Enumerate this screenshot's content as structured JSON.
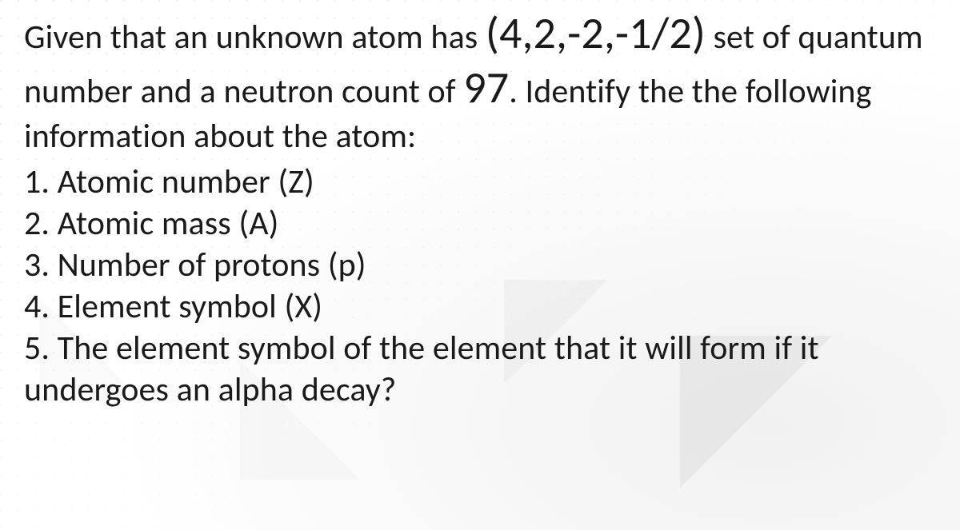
{
  "intro": {
    "s1": "Given that an unknown atom has ",
    "q": "(4,2,-2,-1/2)",
    "s2": " set of quantum number and a neutron count of ",
    "n": "97",
    "s3": ". Identify the the following information about the atom:"
  },
  "items": {
    "i1": "1. Atomic number (Z)",
    "i2": "2. Atomic mass (A)",
    "i3": "3. Number of protons (p)",
    "i4": "4. Element symbol (X)",
    "i5": "5. The element symbol of the element that it will form if it undergoes an alpha decay?"
  },
  "style": {
    "text_color": "#1a1a1a",
    "bg_color": "#ffffff",
    "base_pt": 42,
    "big_pt": 56,
    "font_family": "Calibri"
  }
}
